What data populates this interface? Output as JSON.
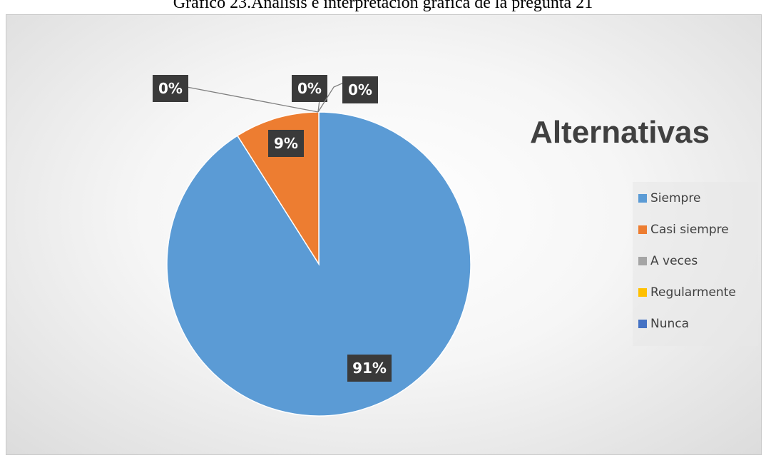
{
  "caption": "Gráfico 23.Análisis e interpretación gráfica de la pregunta 21",
  "chart_data": {
    "type": "pie",
    "title": "",
    "legend_title": "Alternativas",
    "legend_position": "right",
    "categories": [
      "Siempre",
      "Casi siempre",
      "A veces",
      "Regularmente",
      "Nunca"
    ],
    "values": [
      91,
      9,
      0,
      0,
      0
    ],
    "data_labels": [
      "91%",
      "9%",
      "0%",
      "0%",
      "0%"
    ],
    "colors": [
      "#5B9BD5",
      "#ED7D31",
      "#A5A5A5",
      "#FFC000",
      "#4472C4"
    ]
  }
}
